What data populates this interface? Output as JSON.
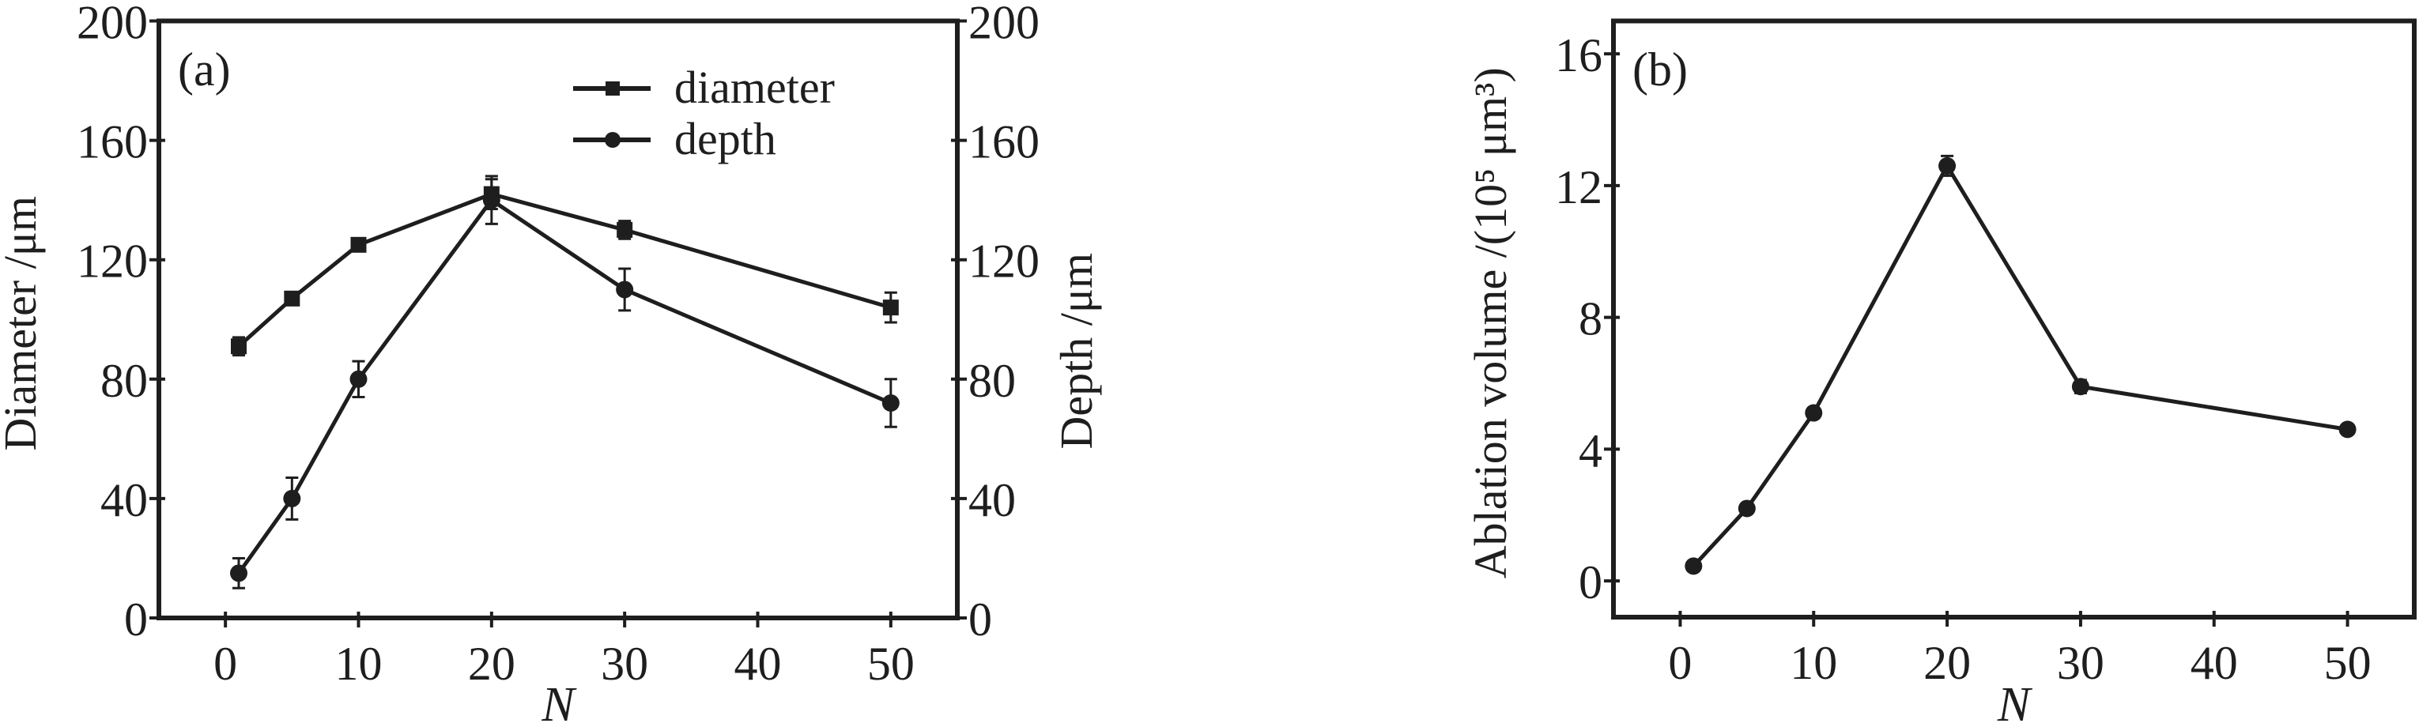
{
  "chart_data": [
    {
      "type": "line",
      "panel_label": "(a)",
      "xlabel": "N",
      "ylabel": "Diameter /μm",
      "y2label": "Depth /μm",
      "xlim": [
        -5,
        55
      ],
      "ylim": [
        0,
        200
      ],
      "y2lim": [
        0,
        200
      ],
      "xticks": [
        0,
        10,
        20,
        30,
        40,
        50
      ],
      "yticks": [
        0,
        40,
        80,
        120,
        160,
        200
      ],
      "y2ticks": [
        0,
        40,
        80,
        120,
        160,
        200
      ],
      "grid": false,
      "legend_placement": "top-right",
      "x": [
        1,
        5,
        10,
        20,
        30,
        50
      ],
      "series": [
        {
          "name": "diameter",
          "marker": "square",
          "values": [
            91,
            107,
            125,
            142,
            130,
            104
          ],
          "errors": [
            3,
            2,
            2,
            5,
            3,
            5
          ]
        },
        {
          "name": "depth",
          "marker": "circle",
          "values": [
            15,
            40,
            80,
            140,
            110,
            72
          ],
          "errors": [
            5,
            7,
            6,
            8,
            7,
            8
          ]
        }
      ],
      "color": "#1e1e1e"
    },
    {
      "type": "line",
      "panel_label": "(b)",
      "xlabel": "N",
      "ylabel": "Ablation volume /(10⁵ μm³)",
      "xlim": [
        -5,
        55
      ],
      "ylim": [
        -1.1,
        17
      ],
      "xticks": [
        0,
        10,
        20,
        30,
        40,
        50
      ],
      "yticks": [
        0,
        4,
        8,
        12,
        16
      ],
      "grid": false,
      "x": [
        1,
        5,
        10,
        20,
        30,
        50
      ],
      "series": [
        {
          "marker": "circle",
          "values": [
            0.45,
            2.2,
            5.1,
            12.6,
            5.9,
            4.6
          ],
          "errors": [
            0.1,
            0.1,
            0.15,
            0.3,
            0.2,
            0.1
          ]
        }
      ],
      "color": "#1e1e1e"
    }
  ]
}
